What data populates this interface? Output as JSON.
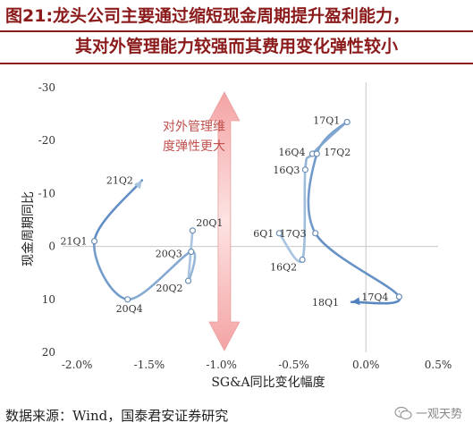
{
  "title_line1": "图21:龙头公司主要通过缩短现金周期提升盈利能力，",
  "title_line2": "其对外管理能力较强而其费用变化弹性较小",
  "source": "数据来源：Wind，国泰君安证券研究",
  "watermark": "一观天势",
  "watermark_icon": "wechat-icon",
  "colors": {
    "title": "#8b1a1a",
    "line_dark": "#4f81bd",
    "line_light": "#a9c4e0",
    "arrow_band": "#f2b3b3",
    "annotation_text": "#c0504d"
  },
  "chart_data": {
    "type": "line",
    "xlabel": "SG&A同比变化幅度",
    "ylabel": "现金周期同比",
    "xlim": [
      -2.1,
      0.5
    ],
    "ylim": [
      20,
      -30
    ],
    "y_reversed": true,
    "xticks": [
      -2.0,
      -1.5,
      -1.0,
      -0.5,
      0.0,
      0.5
    ],
    "xtick_labels": [
      "-2.0%",
      "-1.5%",
      "-1.0%",
      "-0.5%",
      "0.0%",
      "0.5%"
    ],
    "yticks": [
      -30,
      -20,
      -10,
      0,
      10,
      20
    ],
    "ytick_labels": [
      "-30",
      "-20",
      "-10",
      "0",
      "10",
      "20"
    ],
    "annotation": "对外管理维度弹性更大",
    "series": [
      {
        "points": [
          {
            "label": "20Q1",
            "x": -1.2,
            "y": -3
          },
          {
            "label": "20Q2",
            "x": -1.23,
            "y": 6.5
          },
          {
            "label": "20Q3",
            "x": -1.21,
            "y": 1
          },
          {
            "label": "20Q4",
            "x": -1.65,
            "y": 10
          },
          {
            "label": "21Q1",
            "x": -1.88,
            "y": -1
          },
          {
            "label": "21Q2",
            "x": -1.55,
            "y": -12.5
          }
        ]
      },
      {
        "points": [
          {
            "label": "6Q1",
            "x": -0.6,
            "y": -2.5
          },
          {
            "label": "16Q2",
            "x": -0.44,
            "y": 2.5
          },
          {
            "label": "16Q3",
            "x": -0.42,
            "y": -14.5
          },
          {
            "label": "16Q4",
            "x": -0.37,
            "y": -17.5
          },
          {
            "label": "17Q1",
            "x": -0.13,
            "y": -23.5
          },
          {
            "label": "17Q2",
            "x": -0.34,
            "y": -17.5
          },
          {
            "label": "17Q3",
            "x": -0.35,
            "y": -2.5
          },
          {
            "label": "17Q4",
            "x": 0.23,
            "y": 9.5
          },
          {
            "label": "18Q1",
            "x": -0.1,
            "y": 10.5
          }
        ]
      }
    ]
  }
}
